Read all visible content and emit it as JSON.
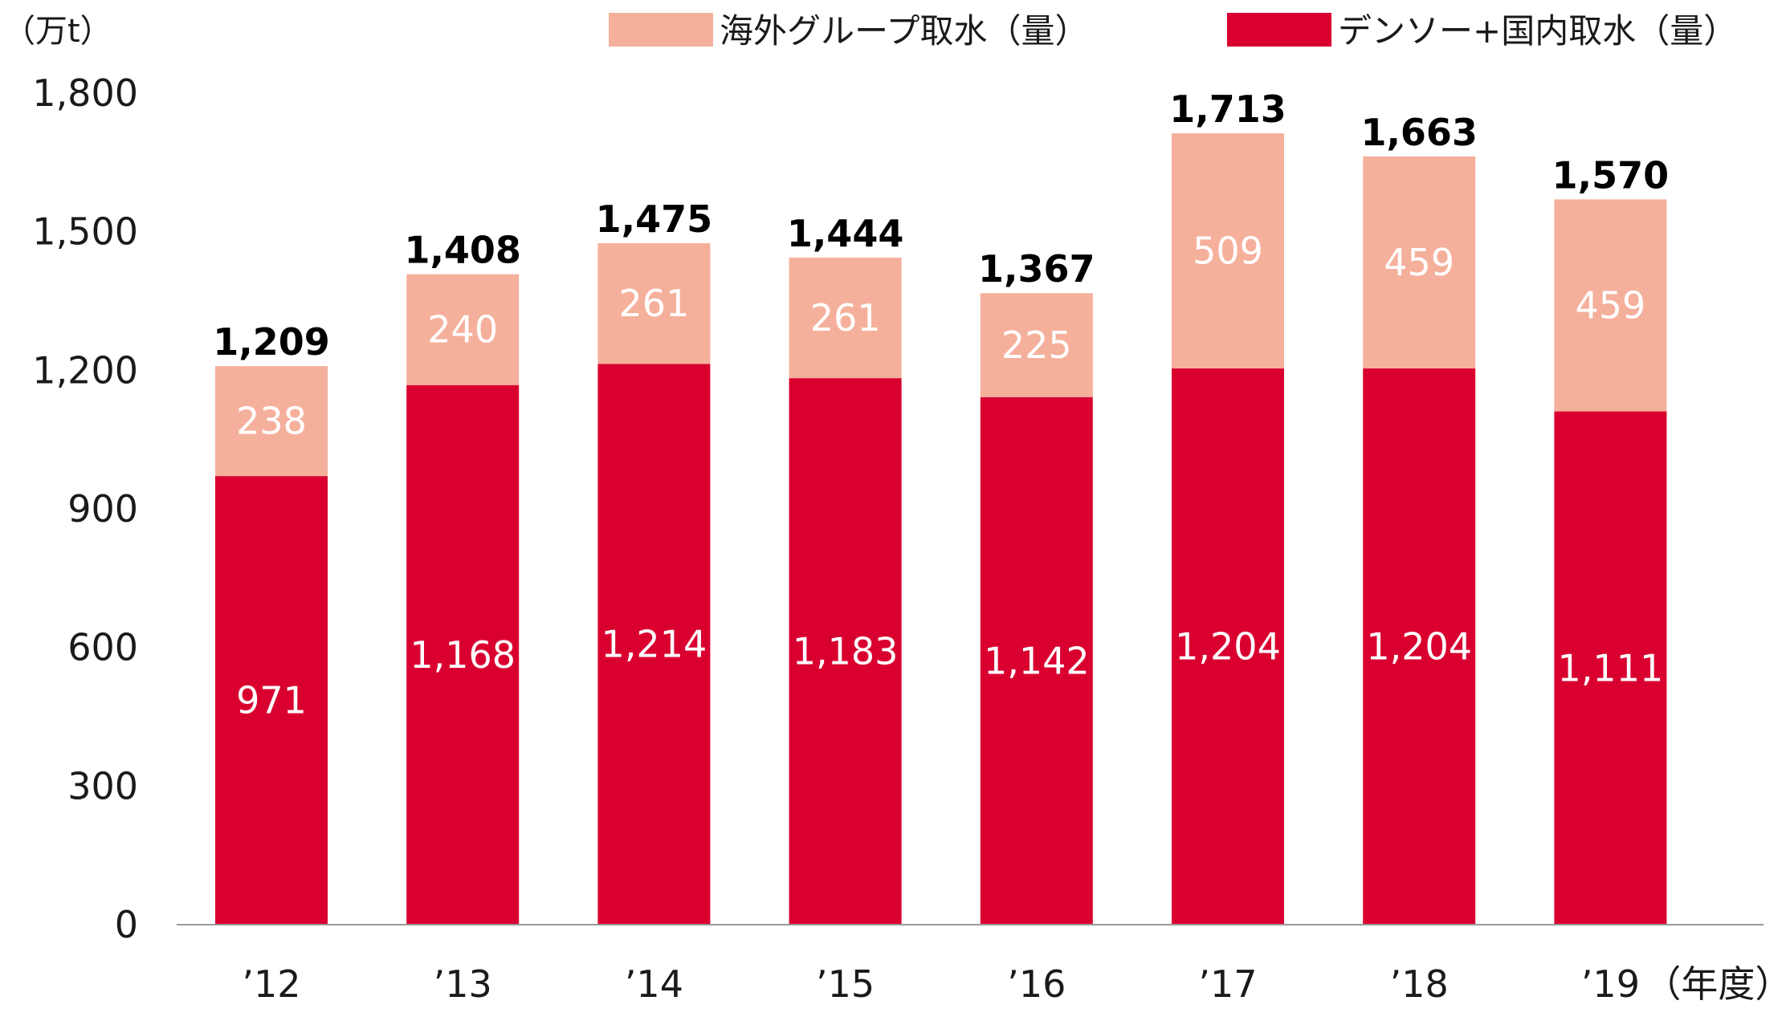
{
  "chart_data": {
    "type": "bar",
    "stacked": true,
    "categories": [
      "’12",
      "’13",
      "’14",
      "’15",
      "’16",
      "’17",
      "’18",
      "’19"
    ],
    "series": [
      {
        "name": "デンソー+国内取水（量）",
        "color": "#d90030",
        "values": [
          971,
          1168,
          1214,
          1183,
          1142,
          1204,
          1204,
          1111
        ],
        "labels": [
          "971",
          "1,168",
          "1,214",
          "1,183",
          "1,142",
          "1,204",
          "1,204",
          "1,111"
        ]
      },
      {
        "name": "海外グループ取水（量）",
        "color": "#f5b09c",
        "values": [
          238,
          240,
          261,
          261,
          225,
          509,
          459,
          459
        ],
        "labels": [
          "238",
          "240",
          "261",
          "261",
          "225",
          "509",
          "459",
          "459"
        ]
      }
    ],
    "totals": [
      1209,
      1408,
      1475,
      1444,
      1367,
      1713,
      1663,
      1570
    ],
    "total_labels": [
      "1,209",
      "1,408",
      "1,475",
      "1,444",
      "1,367",
      "1,713",
      "1,663",
      "1,570"
    ],
    "ylabel": "（万t）",
    "xlabel": "（年度）",
    "ylim": [
      0,
      1800
    ],
    "yticks": [
      0,
      300,
      600,
      900,
      1200,
      1500,
      1800
    ],
    "ytick_labels": [
      "0",
      "300",
      "600",
      "900",
      "1,200",
      "1,500",
      "1,800"
    ],
    "legend_position": "top-right",
    "legend_order": [
      1,
      0
    ],
    "grid": false,
    "axis_color": "#999999"
  }
}
